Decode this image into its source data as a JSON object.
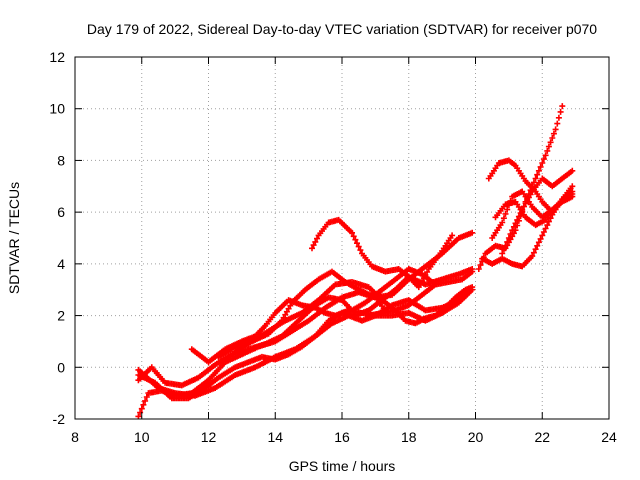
{
  "chart_data": {
    "type": "scatter",
    "title": "Day 179 of 2022, Sidereal Day-to-day VTEC variation (SDTVAR) for receiver p070",
    "xlabel": "GPS time / hours",
    "ylabel": "SDTVAR / TECUs",
    "xlim": [
      8,
      24
    ],
    "ylim": [
      -2,
      12
    ],
    "x_ticks": [
      "8",
      "10",
      "12",
      "14",
      "16",
      "18",
      "20",
      "22",
      "24"
    ],
    "y_ticks": [
      "-2",
      "0",
      "2",
      "4",
      "6",
      "8",
      "10",
      "12"
    ],
    "grid": true,
    "marker": "plus",
    "series_color": "#ff0000",
    "tracks": [
      {
        "x": [
          9.9,
          10.2,
          10.6,
          11.0,
          11.5,
          12.0,
          12.5,
          13.0,
          13.5,
          14.0,
          14.5,
          15.0,
          15.5,
          16.0,
          16.5,
          17.0,
          17.3
        ],
        "y": [
          -1.9,
          -1.0,
          -0.9,
          -1.1,
          -1.0,
          -0.5,
          0.2,
          0.5,
          0.8,
          1.0,
          1.4,
          1.8,
          2.3,
          2.7,
          2.9,
          2.7,
          2.2
        ]
      },
      {
        "x": [
          9.9,
          10.3,
          10.7,
          11.2,
          11.7,
          12.2,
          12.7,
          13.2,
          13.7,
          14.2,
          14.7,
          15.2,
          15.6,
          16.0,
          16.3,
          16.7,
          17.0,
          17.5,
          18.0,
          18.4,
          18.8
        ],
        "y": [
          -0.5,
          0.0,
          -0.6,
          -0.7,
          -0.4,
          0.1,
          0.5,
          0.7,
          0.9,
          1.2,
          1.8,
          2.4,
          2.7,
          2.6,
          2.2,
          2.5,
          2.8,
          3.3,
          3.8,
          3.6,
          3.2
        ]
      },
      {
        "x": [
          9.9,
          10.4,
          10.9,
          11.4,
          11.9,
          12.3,
          12.8,
          13.2,
          13.6,
          14.0,
          14.4,
          14.8,
          15.2,
          15.6,
          16.0,
          16.4,
          16.8,
          17.2,
          17.6,
          18.0,
          18.5,
          19.0,
          19.5,
          19.9
        ],
        "y": [
          -0.3,
          -0.6,
          -1.2,
          -1.2,
          -0.8,
          -0.4,
          0.0,
          0.2,
          0.4,
          0.3,
          0.5,
          0.8,
          1.2,
          1.8,
          2.1,
          2.0,
          2.2,
          2.6,
          3.0,
          3.5,
          3.2,
          3.4,
          3.6,
          3.8
        ]
      },
      {
        "x": [
          9.9,
          10.5,
          11.0,
          11.6,
          12.2,
          12.8,
          13.4,
          14.0,
          14.6,
          15.2,
          15.7,
          16.2,
          16.6,
          17.0,
          17.5,
          18.0,
          18.5,
          19.0,
          19.5,
          19.8
        ],
        "y": [
          -0.1,
          -0.8,
          -1.0,
          -1.1,
          -0.8,
          -0.3,
          0.0,
          0.4,
          0.7,
          1.2,
          1.7,
          2.0,
          1.8,
          2.0,
          2.4,
          2.6,
          2.2,
          2.3,
          2.6,
          3.0
        ]
      },
      {
        "x": [
          11.5,
          12.0,
          12.5,
          13.0,
          13.4,
          13.7,
          14.0,
          14.4,
          14.8,
          15.2,
          15.5,
          15.8,
          16.2,
          16.6,
          17.0,
          17.5,
          18.0,
          18.5,
          19.0,
          19.5,
          19.9
        ],
        "y": [
          0.7,
          0.2,
          0.7,
          1.0,
          1.2,
          1.6,
          2.1,
          2.6,
          2.4,
          2.3,
          2.1,
          2.0,
          2.2,
          2.1,
          2.0,
          2.0,
          2.1,
          1.8,
          2.1,
          2.5,
          3.0
        ]
      },
      {
        "x": [
          12.3,
          12.8,
          13.3,
          13.8,
          14.2,
          14.5,
          14.9,
          15.3,
          15.7,
          16.1,
          16.5,
          17.0,
          17.5,
          18.0,
          18.5,
          19.0,
          19.5,
          19.9
        ],
        "y": [
          0.4,
          0.8,
          1.0,
          1.3,
          1.8,
          2.5,
          3.0,
          3.4,
          3.7,
          3.3,
          3.0,
          2.7,
          2.8,
          3.4,
          3.9,
          4.4,
          5.0,
          5.2
        ]
      },
      {
        "x": [
          12.8,
          13.3,
          13.8,
          14.3,
          14.8,
          15.3,
          15.8,
          16.3,
          16.8,
          17.2,
          17.6,
          18.0,
          18.4,
          18.8,
          19.2,
          19.6,
          19.9
        ],
        "y": [
          0.6,
          1.0,
          1.4,
          1.8,
          2.1,
          2.6,
          3.2,
          3.3,
          3.1,
          2.6,
          2.2,
          2.4,
          2.8,
          3.2,
          3.3,
          3.4,
          3.7
        ]
      },
      {
        "x": [
          15.1,
          15.3,
          15.6,
          15.9,
          16.3,
          16.6,
          16.9,
          17.3,
          17.7,
          18.0,
          18.3,
          18.6,
          19.0,
          19.3
        ],
        "y": [
          4.6,
          5.1,
          5.6,
          5.7,
          5.2,
          4.4,
          3.9,
          3.7,
          3.8,
          3.5,
          3.1,
          3.8,
          4.5,
          5.1
        ]
      },
      {
        "x": [
          16.8,
          17.2,
          17.6,
          17.9,
          18.2,
          18.5,
          18.8,
          19.1,
          19.4,
          19.7,
          19.9
        ],
        "y": [
          2.0,
          2.1,
          2.2,
          1.8,
          1.7,
          1.9,
          2.0,
          2.3,
          2.7,
          3.0,
          3.1
        ]
      },
      {
        "x": [
          20.1,
          20.3,
          20.6,
          20.9,
          21.2,
          21.5,
          21.8,
          22.1,
          22.4,
          22.6
        ],
        "y": [
          3.8,
          4.4,
          4.7,
          4.6,
          5.3,
          6.4,
          7.3,
          8.2,
          9.2,
          10.1
        ]
      },
      {
        "x": [
          20.4,
          20.7,
          21.0,
          21.2,
          21.5,
          21.8,
          22.0,
          22.3,
          22.6,
          22.9
        ],
        "y": [
          7.3,
          7.9,
          8.0,
          7.8,
          7.2,
          6.8,
          6.4,
          6.0,
          6.5,
          7.0
        ]
      },
      {
        "x": [
          20.2,
          20.5,
          20.8,
          21.1,
          21.4,
          21.7,
          22.0,
          22.3,
          22.6,
          22.9
        ],
        "y": [
          4.2,
          4.0,
          4.2,
          4.0,
          3.9,
          4.3,
          5.1,
          5.9,
          6.5,
          6.7
        ]
      },
      {
        "x": [
          20.6,
          20.9,
          21.2,
          21.5,
          21.8,
          22.1,
          22.4,
          22.7,
          22.9
        ],
        "y": [
          5.8,
          6.3,
          6.4,
          5.8,
          5.5,
          5.7,
          6.2,
          6.6,
          6.8
        ]
      },
      {
        "x": [
          20.8,
          21.1,
          21.4,
          21.7,
          22.0,
          22.3,
          22.6,
          22.9
        ],
        "y": [
          4.4,
          5.3,
          6.1,
          6.8,
          7.3,
          7.0,
          7.3,
          7.6
        ]
      },
      {
        "x": [
          20.5,
          20.8,
          21.1,
          21.4,
          21.7,
          22.0,
          22.3,
          22.6,
          22.9
        ],
        "y": [
          5.0,
          5.6,
          6.6,
          6.8,
          6.2,
          5.8,
          6.1,
          6.4,
          6.6
        ]
      }
    ]
  }
}
